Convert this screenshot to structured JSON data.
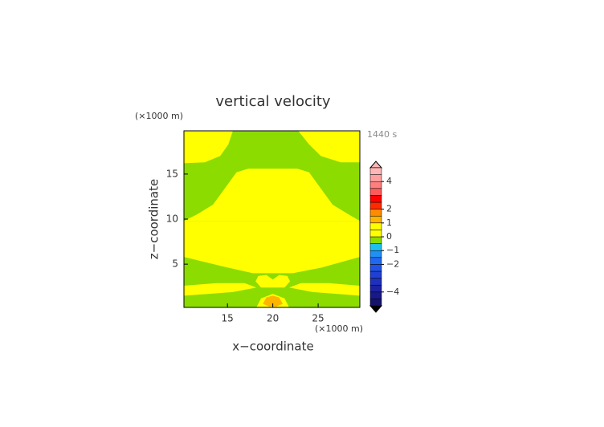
{
  "chart_data": {
    "type": "contour",
    "title": "vertical velocity",
    "x_label": "x−coordinate",
    "y_label": "z−coordinate",
    "x_unit": "(×1000 m)",
    "y_unit": "(×1000 m)",
    "time_label": "1440 s",
    "xlim": [
      10.2,
      29.6
    ],
    "ylim": [
      0.2,
      19.8
    ],
    "xticks": [
      15,
      20,
      25
    ],
    "yticks": [
      5,
      10,
      15
    ],
    "background_value": 0.5,
    "regions": [
      {
        "value": -0.2,
        "x": [
          10.2,
          29.6,
          29.6,
          10.2
        ],
        "y": [
          9.8,
          9.8,
          19.8,
          19.8
        ]
      },
      {
        "value": 0.5,
        "x": [
          10.2,
          15.6,
          15.1,
          14.2,
          12.5,
          10.2
        ],
        "y": [
          19.8,
          19.8,
          18.3,
          17.0,
          16.3,
          16.2
        ]
      },
      {
        "value": 0.5,
        "x": [
          22.8,
          29.6,
          29.6,
          27.5,
          25.3,
          24.0
        ],
        "y": [
          19.8,
          19.8,
          16.3,
          16.3,
          17.0,
          18.3
        ]
      },
      {
        "value": 0.5,
        "x": [
          10.2,
          11.6,
          13.4,
          14.7,
          16.0,
          17.3,
          22.7,
          24.0,
          25.3,
          26.6,
          28.4,
          29.6
        ],
        "y": [
          9.8,
          10.5,
          11.6,
          13.4,
          15.2,
          15.6,
          15.6,
          15.2,
          13.4,
          11.6,
          10.5,
          9.8
        ]
      },
      {
        "value": -0.2,
        "x": [
          10.2,
          14.7,
          17.8,
          22.2,
          25.3,
          29.6,
          29.6,
          10.2
        ],
        "y": [
          5.8,
          4.7,
          4.0,
          4.0,
          4.6,
          5.8,
          0.2,
          0.2
        ]
      },
      {
        "value": 0.5,
        "x": [
          10.2,
          13.8,
          16.9,
          18.2,
          15.6,
          10.2
        ],
        "y": [
          2.6,
          2.9,
          2.9,
          2.4,
          1.9,
          1.5
        ]
      },
      {
        "value": 0.5,
        "x": [
          29.6,
          26.2,
          23.1,
          21.8,
          24.4,
          29.6
        ],
        "y": [
          2.6,
          2.9,
          2.9,
          2.4,
          1.9,
          1.5
        ]
      },
      {
        "value": 0.5,
        "x": [
          18.1,
          18.4,
          19.3,
          20.0,
          20.7,
          21.6,
          21.9,
          21.3,
          18.7
        ],
        "y": [
          3.1,
          3.7,
          3.8,
          3.3,
          3.8,
          3.7,
          3.1,
          2.4,
          2.4
        ]
      },
      {
        "value": 0.5,
        "x": [
          18.2,
          18.7,
          20.0,
          21.3,
          21.8
        ],
        "y": [
          0.2,
          1.2,
          1.7,
          1.2,
          0.2
        ]
      },
      {
        "value": 1.2,
        "x": [
          18.9,
          19.3,
          20.0,
          20.7,
          21.1,
          20.4,
          19.6
        ],
        "y": [
          0.6,
          1.3,
          1.5,
          1.3,
          0.6,
          0.3,
          0.3
        ]
      }
    ],
    "colorbar": {
      "lim": [
        -5,
        5
      ],
      "levels": [
        -5,
        -4.5,
        -4,
        -3.5,
        -3,
        -2.5,
        -2,
        -1.5,
        -1,
        -0.5,
        0,
        0.5,
        1,
        1.5,
        2,
        2.5,
        3,
        3.5,
        4,
        4.5,
        5
      ],
      "colors": [
        "#14146a",
        "#181888",
        "#1c22a2",
        "#1e30bc",
        "#2040d4",
        "#2052e6",
        "#2068f0",
        "#2090f4",
        "#20c0ee",
        "#8cdc00",
        "#ffff00",
        "#ffff00",
        "#ffb400",
        "#ff8c00",
        "#ff2a00",
        "#ff0000",
        "#ff5a5a",
        "#ff7e7e",
        "#ffa0a0",
        "#ffb6b6"
      ],
      "ticks": [
        {
          "value": -4,
          "label": "−4"
        },
        {
          "value": -2,
          "label": "−2"
        },
        {
          "value": -1,
          "label": "−1"
        },
        0,
        1,
        2,
        4
      ]
    }
  }
}
